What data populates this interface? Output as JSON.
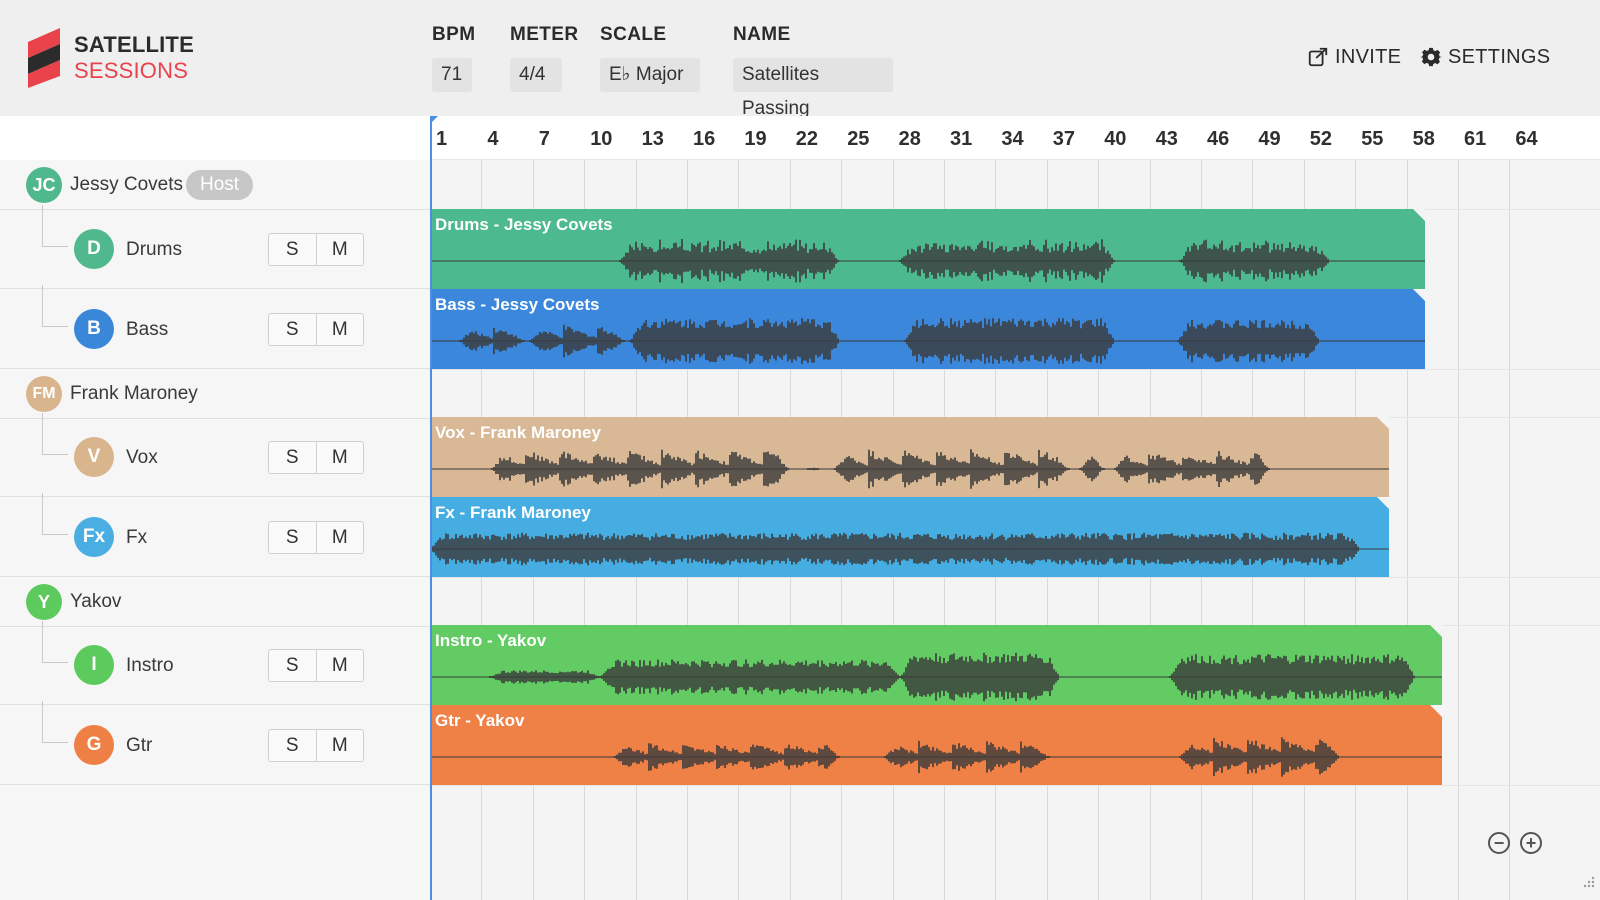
{
  "app": {
    "logo_line1": "SATELLITE",
    "logo_line2": "SESSIONS",
    "accent": "#e8424b"
  },
  "header": {
    "fields": [
      {
        "label": "BPM",
        "value": "71"
      },
      {
        "label": "METER",
        "value": "4/4"
      },
      {
        "label": "SCALE",
        "value": "E♭ Major"
      },
      {
        "label": "NAME",
        "value": "Satellites Passing"
      }
    ],
    "invite_label": "INVITE",
    "settings_label": "SETTINGS",
    "invite_icon": "share-icon",
    "settings_icon": "gear-icon"
  },
  "ruler": {
    "bars": [
      "1",
      "4",
      "7",
      "10",
      "13",
      "16",
      "19",
      "22",
      "25",
      "28",
      "31",
      "34",
      "37",
      "40",
      "43",
      "46",
      "49",
      "52",
      "55",
      "58",
      "61",
      "64"
    ]
  },
  "users": [
    {
      "initials": "JC",
      "name": "Jessy Covets",
      "badge": "Host",
      "color": "#4fb88c",
      "tracks": [
        {
          "initial": "D",
          "name": "Drums",
          "color": "#4fb88c",
          "clip_title": "Drums - Jessy Covets",
          "clip_color": "#4db98e",
          "solo": "S",
          "mute": "M"
        },
        {
          "initial": "B",
          "name": "Bass",
          "color": "#3a87d9",
          "clip_title": "Bass - Jessy Covets",
          "clip_color": "#3a87db",
          "solo": "S",
          "mute": "M"
        }
      ]
    },
    {
      "initials": "FM",
      "name": "Frank Maroney",
      "badge": "",
      "color": "#d9b58e",
      "tracks": [
        {
          "initial": "V",
          "name": "Vox",
          "color": "#d9b58e",
          "clip_title": "Vox - Frank Maroney",
          "clip_color": "#d9b896",
          "solo": "S",
          "mute": "M"
        },
        {
          "initial": "Fx",
          "name": "Fx",
          "color": "#4aaee3",
          "clip_title": "Fx - Frank Maroney",
          "clip_color": "#45ade2",
          "solo": "S",
          "mute": "M"
        }
      ]
    },
    {
      "initials": "Y",
      "name": "Yakov",
      "badge": "",
      "color": "#5cca5c",
      "tracks": [
        {
          "initial": "I",
          "name": "Instro",
          "color": "#5cca5c",
          "clip_title": "Instro - Yakov",
          "clip_color": "#62cb63",
          "solo": "S",
          "mute": "M"
        },
        {
          "initial": "G",
          "name": "Gtr",
          "color": "#ef8045",
          "clip_title": "Gtr - Yakov",
          "clip_color": "#ef8147",
          "solo": "S",
          "mute": "M"
        }
      ]
    }
  ],
  "zoom": {
    "out_label": "−",
    "in_label": "+"
  }
}
